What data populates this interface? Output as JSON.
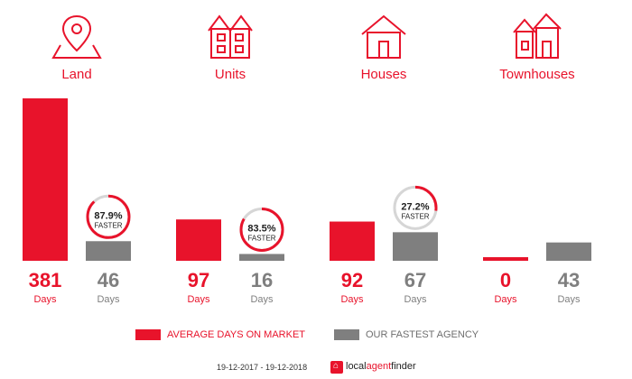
{
  "chart_data": {
    "type": "bar",
    "categories": [
      "Land",
      "Units",
      "Houses",
      "Townhouses"
    ],
    "series": [
      {
        "name": "AVERAGE DAYS ON MARKET",
        "values": [
          381,
          97,
          92,
          0
        ]
      },
      {
        "name": "OUR FASTEST AGENCY",
        "values": [
          46,
          16,
          67,
          43
        ]
      }
    ],
    "value_unit": "Days",
    "faster": [
      "87.9%",
      "83.5%",
      "27.2%",
      null
    ],
    "faster_label": "FASTER",
    "colors": {
      "market": "#e8132b",
      "agency": "#7f7f7f"
    }
  },
  "icons": [
    "map-pin-icon",
    "units-building-icon",
    "house-icon",
    "townhouses-icon"
  ],
  "legend": {
    "market_label": "AVERAGE DAYS ON MARKET",
    "agency_label": "OUR FASTEST AGENCY"
  },
  "footer": {
    "date_range": "19-12-2017 - 19-12-2018",
    "brand_local": "local",
    "brand_agent": "agent",
    "brand_finder": "finder"
  }
}
